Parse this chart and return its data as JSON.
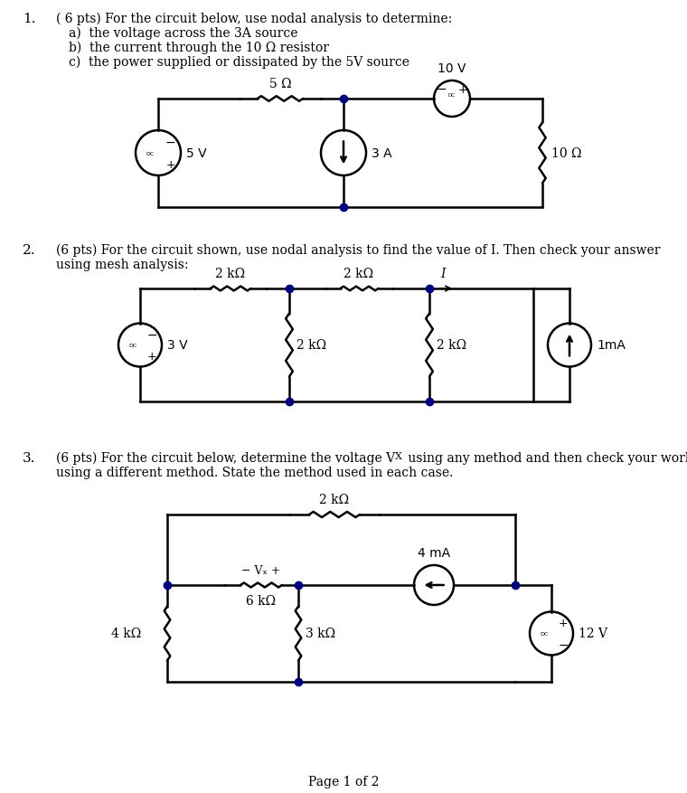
{
  "background_color": "#ffffff",
  "page_label": "Page 1 of 2",
  "p1_line1": "( 6 pts) For the circuit below, use nodal analysis to determine:",
  "p1_line2": "a)  the voltage across the 3A source",
  "p1_line3": "b)  the current through the 10 Ω resistor",
  "p1_line4": "c)  the power supplied or dissipated by the 5V source",
  "p2_line1": "(6 pts) For the circuit shown, use nodal analysis to find the value of I. Then check your answer",
  "p2_line2": "using mesh analysis:",
  "p3_line1": "(6 pts) For the circuit below, determine the voltage V",
  "p3_line1b": "X",
  "p3_line1c": " using any method and then check your work",
  "p3_line2": "using a different method. State the method used in each case."
}
